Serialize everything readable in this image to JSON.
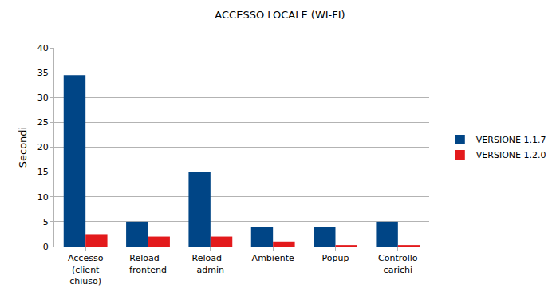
{
  "chart_data": {
    "type": "bar",
    "title": "ACCESSO LOCALE (WI-FI)",
    "y_label": "Secondi",
    "categories": [
      "Accesso (client chiuso)",
      "Reload – frontend",
      "Reload – admin",
      "Ambiente",
      "Popup",
      "Controllo carichi"
    ],
    "series": [
      {
        "name": "VERSIONE 1.1.7",
        "color": "#004586",
        "values": [
          34.5,
          5,
          15,
          4,
          4,
          5
        ]
      },
      {
        "name": "VERSIONE 1.2.0",
        "color": "#e31a1c",
        "values": [
          2.5,
          2,
          2,
          1,
          0.3,
          0.3
        ]
      }
    ],
    "ylim": [
      0,
      40
    ],
    "yticks": [
      0,
      5,
      10,
      15,
      20,
      25,
      30,
      35,
      40
    ],
    "grid": true,
    "legend": "right"
  }
}
